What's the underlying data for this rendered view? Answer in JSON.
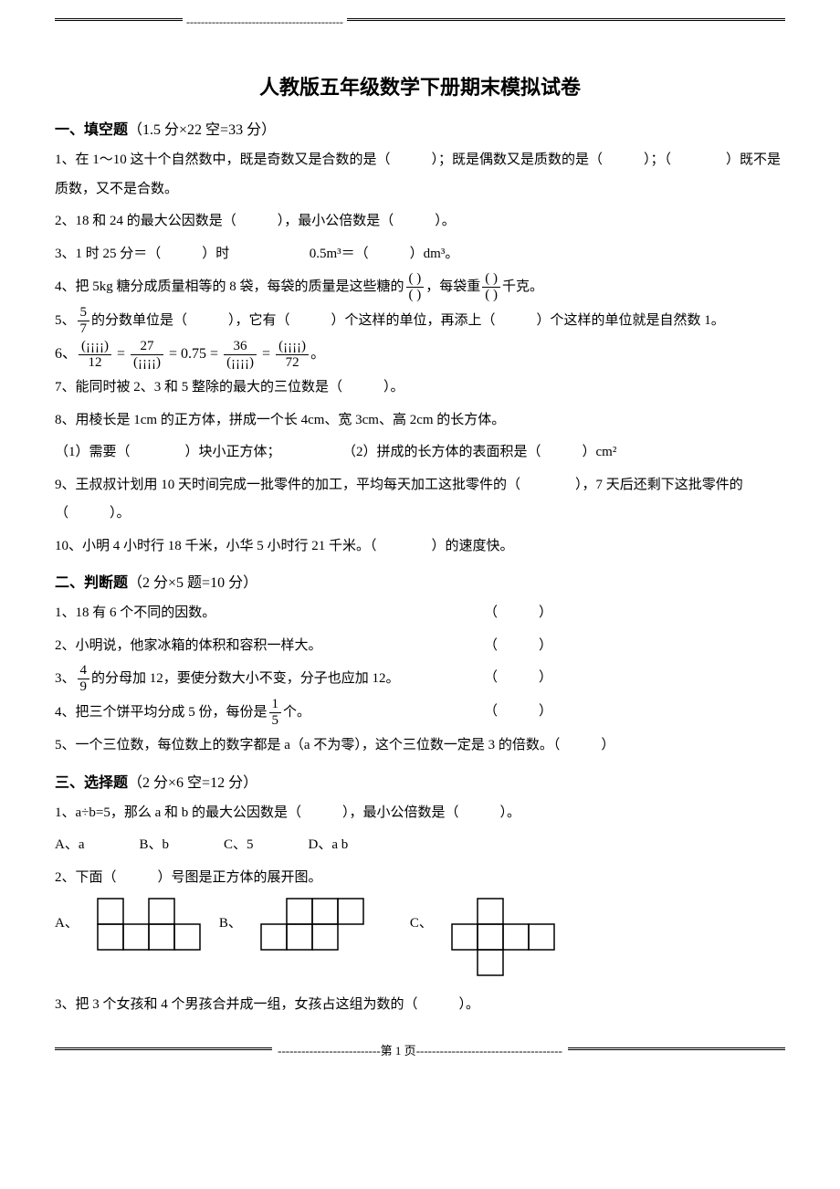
{
  "top_dashes": "-------------------------------------------",
  "title": "人教版五年级数学下册期末模拟试卷",
  "s1": {
    "head_label": "一、填空题",
    "head_paren": "（1.5 分×22 空=33 分）",
    "q1": "1、在 1～10 这十个自然数中，既是奇数又是合数的是（　　　）；既是偶数又是质数的是（　　　）；（　　　　）既不是质数，又不是合数。",
    "q2": "2、18 和 24 的最大公因数是（　　　），最小公倍数是（　　　）。",
    "q3_a": "3、1 时 25 分＝（　　　）时",
    "q3_b": "0.5m³＝（　　　）dm³。",
    "q4_a": "4、把 5kg 糖分成质量相等的 8 袋，每袋的质量是这些糖的",
    "q4_b": "，每袋重",
    "q4_c": "千克。",
    "q4_frac_num": "(  )",
    "q4_frac_den": "(  )",
    "q5_a": "5、",
    "q5_frac_num": "5",
    "q5_frac_den": "7",
    "q5_b": "的分数单位是（　　　），它有（　　　）个这样的单位，再添上（　　　）个这样的单位就是自然数 1。",
    "q6_a": "6、",
    "q6_f1_num": "(¡¡¡¡)",
    "q6_f1_den": "12",
    "q6_eq1": " = ",
    "q6_f2_num": "27",
    "q6_f2_den": "(¡¡¡¡)",
    "q6_eq2": " = 0.75 = ",
    "q6_f3_num": "36",
    "q6_f3_den": "(¡¡¡¡)",
    "q6_eq3": " = ",
    "q6_f4_num": "(¡¡¡¡)",
    "q6_f4_den": "72",
    "q6_end": "。",
    "q7": "7、能同时被 2、3 和 5 整除的最大的三位数是（　　　）。",
    "q8": "8、用棱长是 1cm 的正方体，拼成一个长 4cm、宽 3cm、高 2cm 的长方体。",
    "q8_1": "（1）需要（　　　　）块小正方体；",
    "q8_2": "（2）拼成的长方体的表面积是（　　　）cm²",
    "q9": "9、王叔叔计划用 10 天时间完成一批零件的加工，平均每天加工这批零件的（　　　　），7 天后还剩下这批零件的（　　　）。",
    "q10": "10、小明 4 小时行 18 千米，小华 5 小时行 21 千米。（　　　　）的速度快。"
  },
  "s2": {
    "head_label": "二、判断题",
    "head_paren": "（2 分×5 题=10 分）",
    "q1": "1、18 有 6 个不同的因数。",
    "q2": "2、小明说，他家冰箱的体积和容积一样大。",
    "q3_a": "3、",
    "q3_num": "4",
    "q3_den": "9",
    "q3_b": "的分母加 12，要使分数大小不变，分子也应加 12。",
    "q4_a": "4、把三个饼平均分成 5 份，每份是",
    "q4_num": "1",
    "q4_den": "5",
    "q4_b": "个。",
    "q5": "5、一个三位数，每位数上的数字都是 a（a 不为零），这个三位数一定是 3 的倍数。（　　　）",
    "paren": "（　　　）"
  },
  "s3": {
    "head_label": "三、选择题",
    "head_paren": "（2 分×6 空=12 分）",
    "q1": "1、a÷b=5，那么 a 和 b 的最大公因数是（　　　），最小公倍数是（　　　）。",
    "q1_choices": {
      "A": "A、a",
      "B": "B、b",
      "C": "C、5",
      "D": "D、a b"
    },
    "q2": "2、下面（　　　）号图是正方体的展开图。",
    "q2_A": "A、",
    "q2_B": "B、",
    "q2_C": "C、",
    "q3": "3、把 3 个女孩和 4 个男孩合并成一组，女孩占这组为数的（　　　）。",
    "net_cell": 28,
    "net_stroke": "#000000",
    "netA": [
      [
        0,
        0
      ],
      [
        2,
        0
      ],
      [
        0,
        1
      ],
      [
        1,
        1
      ],
      [
        2,
        1
      ],
      [
        3,
        1
      ]
    ],
    "netB": [
      [
        1,
        0
      ],
      [
        2,
        0
      ],
      [
        3,
        0
      ],
      [
        0,
        1
      ],
      [
        1,
        1
      ],
      [
        2,
        1
      ]
    ],
    "netC": [
      [
        1,
        0
      ],
      [
        0,
        1
      ],
      [
        1,
        1
      ],
      [
        2,
        1
      ],
      [
        3,
        1
      ],
      [
        1,
        2
      ]
    ]
  },
  "footer": {
    "left_dashes": "--------------------------",
    "page_label": "第  1  页",
    "right_dashes": "-------------------------------------"
  }
}
